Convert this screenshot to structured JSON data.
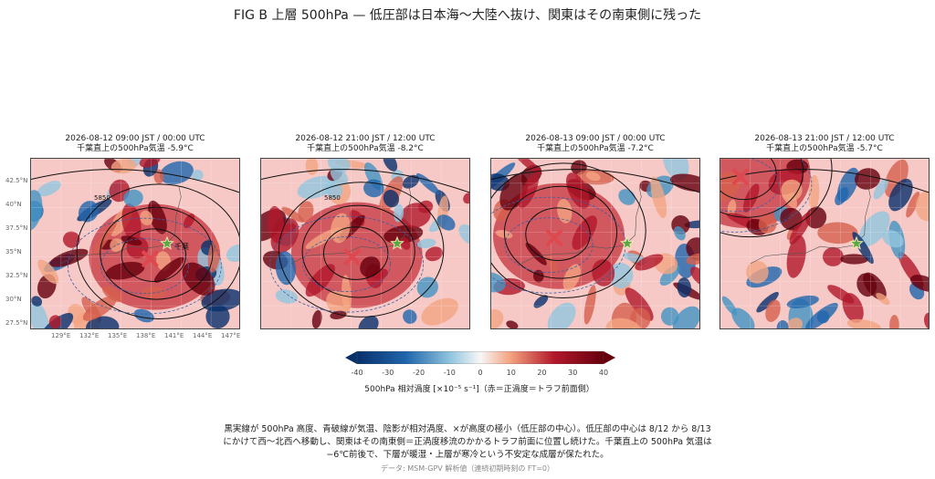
{
  "title": "FIG B 上層 500hPa — 低圧部は日本海〜大陸へ抜け、関東はその南東側に残った",
  "panels": [
    {
      "time": "2026-08-12 09:00 JST / 00:00 UTC",
      "temp": "千葉直上の500hPa気温 -5.9°C",
      "contour_label": "5850",
      "station_label": "千葉",
      "low_lon": 138.4,
      "low_lat": 34.0
    },
    {
      "time": "2026-08-12 21:00 JST / 12:00 UTC",
      "temp": "千葉直上の500hPa気温 -8.2°C",
      "contour_label": "5850",
      "station_label": "",
      "low_lon": 135.6,
      "low_lat": 34.2
    },
    {
      "time": "2026-08-13 09:00 JST / 00:00 UTC",
      "temp": "千葉直上の500hPa気温 -7.2°C",
      "contour_label": "",
      "station_label": "",
      "low_lon": 132.8,
      "low_lat": 36.2
    },
    {
      "time": "2026-08-13 21:00 JST / 12:00 UTC",
      "temp": "千葉直上の500hPa気温 -5.7°C",
      "contour_label": "",
      "station_label": "",
      "low_lon": 128.5,
      "low_lat": 42.6
    }
  ],
  "station": {
    "lon": 140.1,
    "lat": 35.6
  },
  "map_extent": {
    "lon": [
      126.5,
      147.5
    ],
    "lat": [
      26.5,
      44.5
    ]
  },
  "lat_ticks": [
    "42.5°N",
    "40°N",
    "37.5°N",
    "35°N",
    "32.5°N",
    "30°N",
    "27.5°N"
  ],
  "lon_ticks": [
    "129°E",
    "132°E",
    "135°E",
    "138°E",
    "141°E",
    "144°E",
    "147°E"
  ],
  "colorbar": {
    "ticks": [
      "-40",
      "-30",
      "-20",
      "-10",
      "0",
      "10",
      "20",
      "30",
      "40"
    ],
    "range": [
      -40,
      40
    ],
    "label": "500hPa 相対渦度 [×10⁻⁵ s⁻¹]（赤＝正渦度＝トラフ前面側）",
    "colors": {
      "neg": "#08306b",
      "zero": "#f7f7f7",
      "pos": "#67000d"
    }
  },
  "caption": [
    "黒実線が 500hPa 高度、青破線が気温、陰影が相対渦度、×が高度の極小（低圧部の中心）。低圧部の中心は 8/12 から 8/13",
    "にかけて西〜北西へ移動し、関東はその南東側＝正渦度移流のかかるトラフ前面に位置し続けた。千葉直上の 500hPa 気温は",
    "−6℃前後で、下層が暖湿・上層が寒冷という不安定な成層が保たれた。"
  ],
  "source": "データ: MSM-GPV 解析値（連続初期時刻の FT=0）",
  "colors": {
    "low_marker": "#e0484f",
    "station_star": "#5aa843",
    "contour": "#111111",
    "temp_contour": "#3a5fa8"
  }
}
